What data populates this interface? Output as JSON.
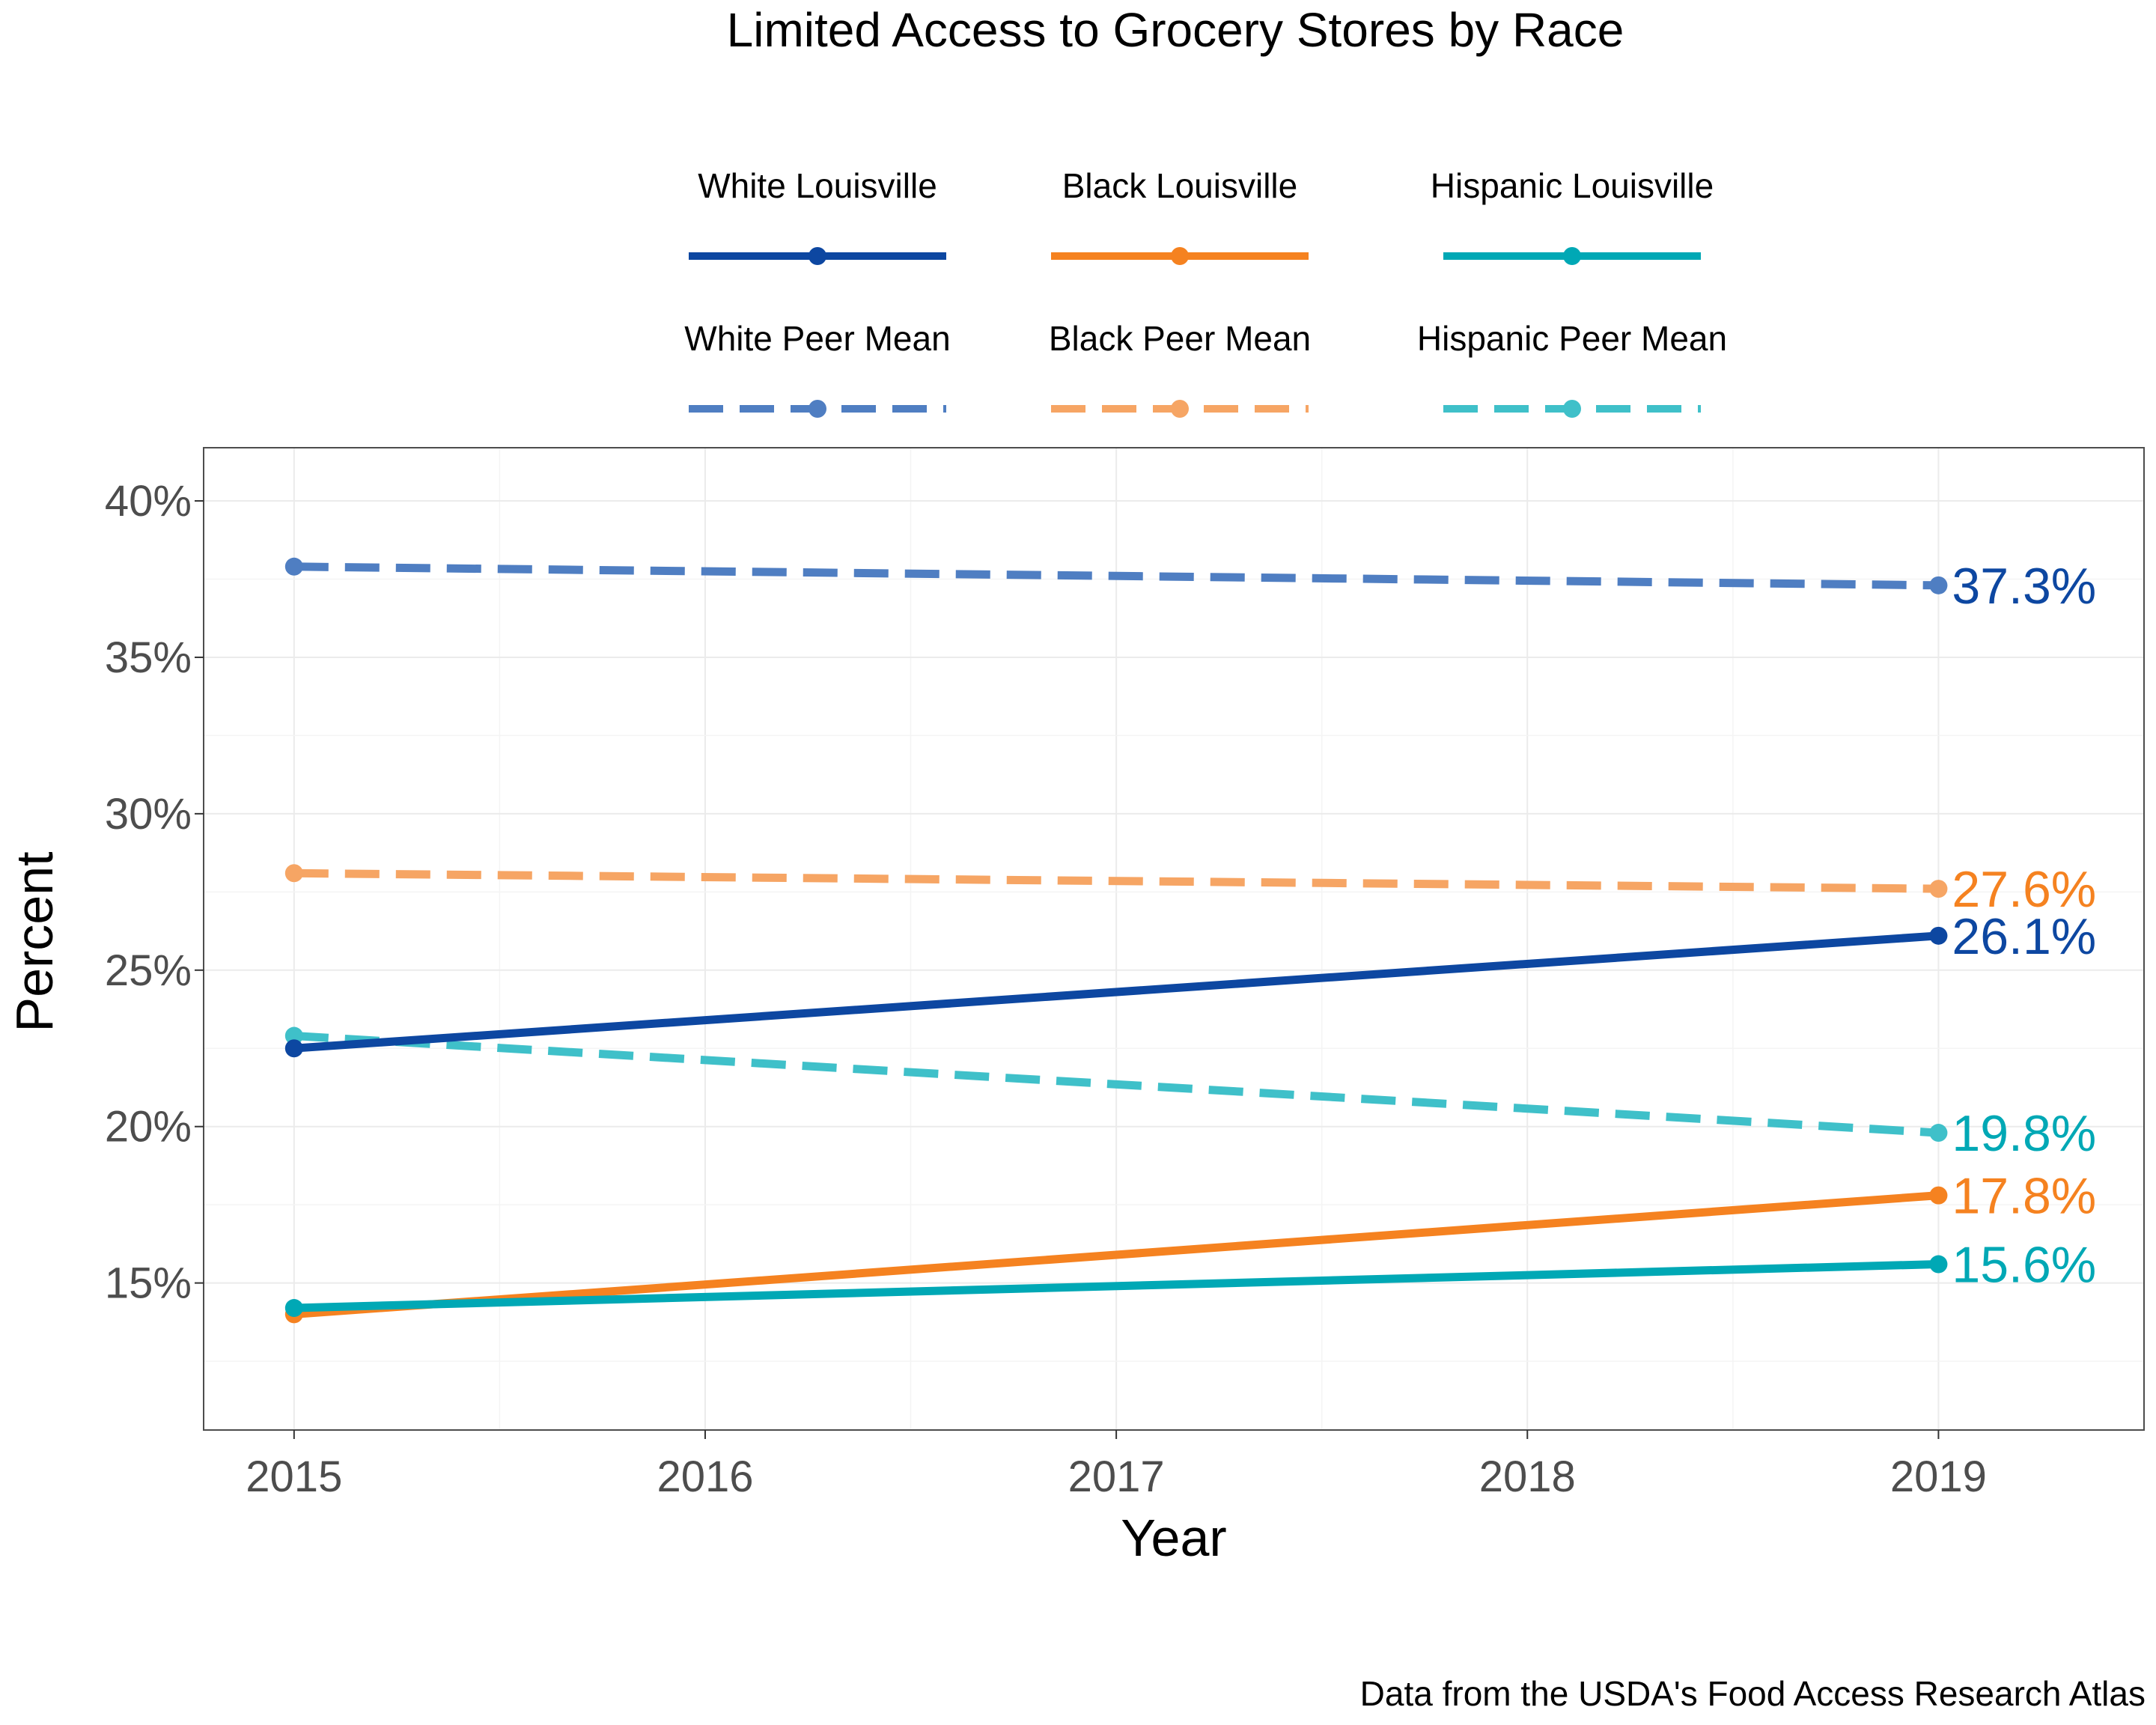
{
  "chart_data": {
    "type": "line",
    "title": "Limited Access to Grocery Stores by Race",
    "xlabel": "Year",
    "ylabel": "Percent",
    "caption": "Data from the USDA's Food Access Research Atlas",
    "x": [
      2015,
      2019
    ],
    "x_ticks": [
      "2015",
      "2016",
      "2017",
      "2018",
      "2019"
    ],
    "xlim": [
      2014.78,
      2019.5
    ],
    "ylim": [
      10.3,
      41.7
    ],
    "y_ticks": [
      15,
      20,
      25,
      30,
      35,
      40
    ],
    "y_tick_labels": [
      "15%",
      "20%",
      "25%",
      "30%",
      "35%",
      "40%"
    ],
    "grid": true,
    "legend_position": "top",
    "series": [
      {
        "name": "White Louisville",
        "color": "#0d47a1",
        "dashed": false,
        "values": [
          22.5,
          26.1
        ],
        "end_label": "26.1%"
      },
      {
        "name": "Black Louisville",
        "color": "#f58220",
        "dashed": false,
        "values": [
          14.0,
          17.8
        ],
        "end_label": "17.8%"
      },
      {
        "name": "Hispanic Louisville",
        "color": "#00a8b5",
        "dashed": false,
        "values": [
          14.2,
          15.6
        ],
        "end_label": "15.6%"
      },
      {
        "name": "White Peer Mean",
        "color": "#4f7ec2",
        "dashed": true,
        "values": [
          37.9,
          37.3
        ],
        "end_label": "37.3%",
        "end_label_color": "#0d47a1"
      },
      {
        "name": "Black Peer Mean",
        "color": "#f6a564",
        "dashed": true,
        "values": [
          28.1,
          27.6
        ],
        "end_label": "27.6%",
        "end_label_color": "#f58220"
      },
      {
        "name": "Hispanic Peer Mean",
        "color": "#3fc0c9",
        "dashed": true,
        "values": [
          22.9,
          19.8
        ],
        "end_label": "19.8%",
        "end_label_color": "#00a8b5"
      }
    ]
  }
}
